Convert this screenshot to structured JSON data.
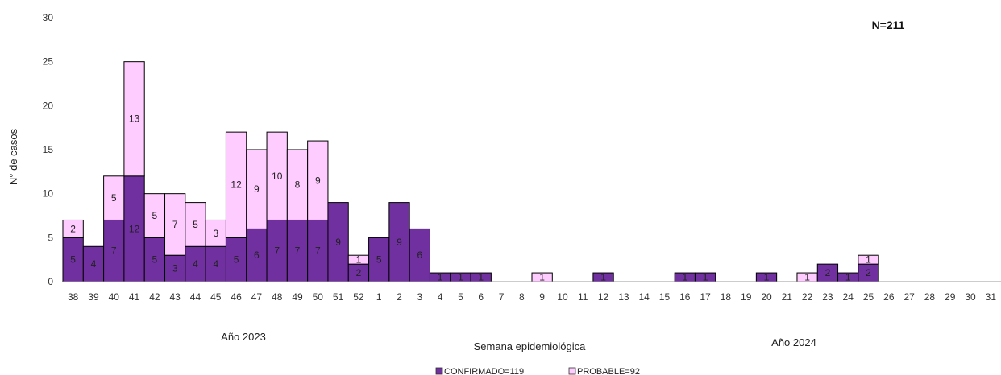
{
  "chart_data": {
    "type": "bar",
    "stacked": true,
    "ylabel": "N° de casos",
    "xlabel": "Semana epidemiológica",
    "n_label": "N=211",
    "year_labels": [
      {
        "text": "Año 2023",
        "from": "38",
        "to": "52"
      },
      {
        "text": "Año 2024",
        "from": "1",
        "to": "31"
      }
    ],
    "ylim": [
      0,
      30
    ],
    "yticks": [
      0,
      5,
      10,
      15,
      20,
      25,
      30
    ],
    "grid": false,
    "legend_position": "bottom",
    "categories": [
      "38",
      "39",
      "40",
      "41",
      "42",
      "43",
      "44",
      "45",
      "46",
      "47",
      "48",
      "49",
      "50",
      "51",
      "52",
      "1",
      "2",
      "3",
      "4",
      "5",
      "6",
      "7",
      "8",
      "9",
      "10",
      "11",
      "12",
      "13",
      "14",
      "15",
      "16",
      "17",
      "18",
      "19",
      "20",
      "21",
      "22",
      "23",
      "24",
      "25",
      "26",
      "27",
      "28",
      "29",
      "30",
      "31"
    ],
    "series": [
      {
        "name": "CONFIRMADO=119",
        "color": "#7030a0",
        "values": [
          5,
          4,
          7,
          12,
          5,
          3,
          4,
          4,
          5,
          6,
          7,
          7,
          7,
          9,
          2,
          5,
          9,
          6,
          1,
          1,
          1,
          0,
          0,
          0,
          0,
          0,
          1,
          0,
          0,
          0,
          1,
          1,
          0,
          0,
          1,
          0,
          0,
          2,
          1,
          2,
          0,
          0,
          0,
          0,
          0,
          0
        ]
      },
      {
        "name": "PROBABLE=92",
        "color": "#ffccff",
        "values": [
          2,
          0,
          5,
          13,
          5,
          7,
          5,
          3,
          12,
          9,
          10,
          8,
          9,
          0,
          1,
          0,
          0,
          0,
          0,
          0,
          0,
          0,
          0,
          1,
          0,
          0,
          0,
          0,
          0,
          0,
          0,
          0,
          0,
          0,
          0,
          0,
          1,
          0,
          0,
          1,
          0,
          0,
          0,
          0,
          0,
          0
        ]
      }
    ]
  }
}
